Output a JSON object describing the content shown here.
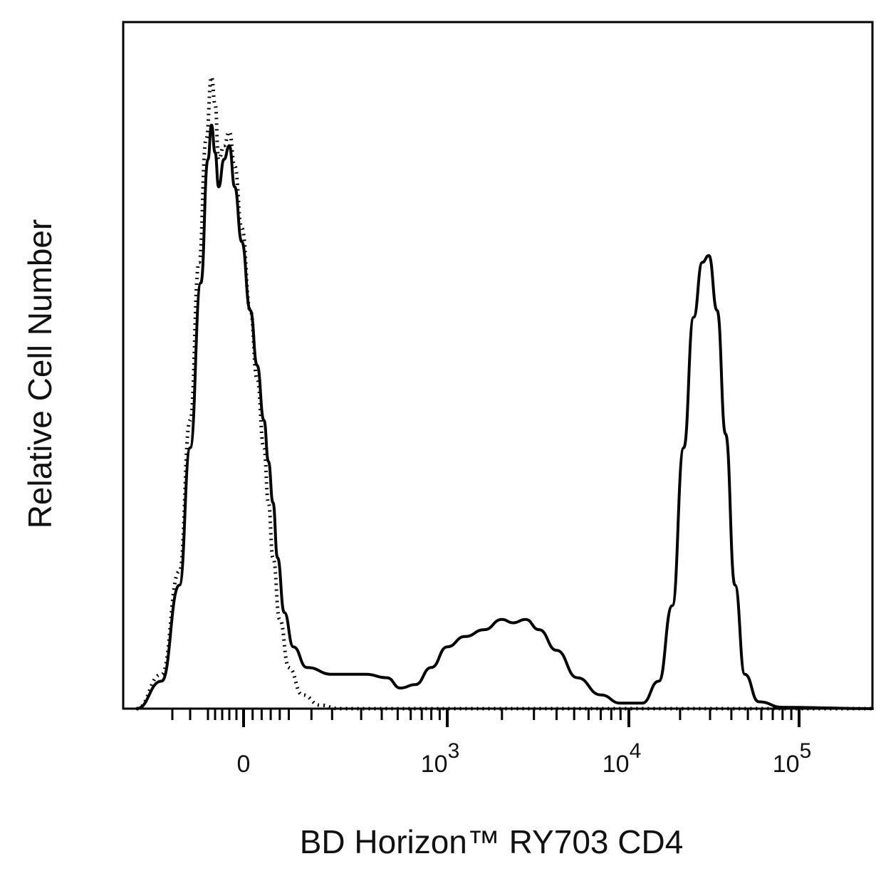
{
  "chart_data": {
    "type": "line",
    "title": "",
    "xlabel": "BD Horizon™ RY703 CD4",
    "ylabel": "Relative Cell Number",
    "x_scale": "biexponential",
    "xlim": [
      -300,
      150000
    ],
    "ylim": [
      0,
      100
    ],
    "grid": false,
    "legend": "none",
    "x_ticks": [
      {
        "value": 0,
        "base": "0",
        "exp": ""
      },
      {
        "value": 1000,
        "base": "10",
        "exp": "3"
      },
      {
        "value": 10000,
        "base": "10",
        "exp": "4"
      },
      {
        "value": 100000,
        "base": "10",
        "exp": "5"
      }
    ],
    "series": [
      {
        "style": "solid",
        "color": "#000000",
        "points": [
          [
            -300,
            0
          ],
          [
            -230,
            4
          ],
          [
            -180,
            18
          ],
          [
            -150,
            38
          ],
          [
            -120,
            62
          ],
          [
            -100,
            80
          ],
          [
            -90,
            85
          ],
          [
            -80,
            81
          ],
          [
            -70,
            76
          ],
          [
            -55,
            80
          ],
          [
            -40,
            82
          ],
          [
            -25,
            76
          ],
          [
            -5,
            68
          ],
          [
            15,
            58
          ],
          [
            30,
            50
          ],
          [
            45,
            42
          ],
          [
            55,
            36
          ],
          [
            65,
            30
          ],
          [
            75,
            22
          ],
          [
            90,
            14
          ],
          [
            110,
            9
          ],
          [
            140,
            6
          ],
          [
            200,
            5
          ],
          [
            320,
            5
          ],
          [
            430,
            4.5
          ],
          [
            520,
            3
          ],
          [
            640,
            3.5
          ],
          [
            800,
            6
          ],
          [
            1000,
            9
          ],
          [
            1250,
            10.5
          ],
          [
            1600,
            11.5
          ],
          [
            2000,
            13
          ],
          [
            2300,
            12.5
          ],
          [
            2700,
            13
          ],
          [
            3200,
            11.5
          ],
          [
            4000,
            8.5
          ],
          [
            5200,
            4.5
          ],
          [
            7000,
            2
          ],
          [
            9000,
            0.8
          ],
          [
            12000,
            0.8
          ],
          [
            15000,
            4
          ],
          [
            18000,
            15
          ],
          [
            21000,
            38
          ],
          [
            24000,
            57
          ],
          [
            27000,
            65
          ],
          [
            29500,
            66
          ],
          [
            33000,
            58
          ],
          [
            37000,
            40
          ],
          [
            42000,
            18
          ],
          [
            48000,
            5
          ],
          [
            58000,
            1
          ],
          [
            80000,
            0.2
          ],
          [
            150000,
            0
          ]
        ]
      },
      {
        "style": "dotted",
        "color": "#000000",
        "points": [
          [
            -300,
            0
          ],
          [
            -230,
            5
          ],
          [
            -180,
            20
          ],
          [
            -150,
            42
          ],
          [
            -125,
            65
          ],
          [
            -105,
            83
          ],
          [
            -90,
            92
          ],
          [
            -80,
            88
          ],
          [
            -70,
            80
          ],
          [
            -55,
            82
          ],
          [
            -40,
            84
          ],
          [
            -25,
            79
          ],
          [
            -5,
            70
          ],
          [
            15,
            58
          ],
          [
            30,
            48
          ],
          [
            45,
            38
          ],
          [
            55,
            30
          ],
          [
            65,
            22
          ],
          [
            80,
            13
          ],
          [
            100,
            6
          ],
          [
            130,
            2
          ],
          [
            170,
            0.5
          ],
          [
            220,
            0
          ],
          [
            150000,
            0
          ]
        ]
      }
    ]
  }
}
